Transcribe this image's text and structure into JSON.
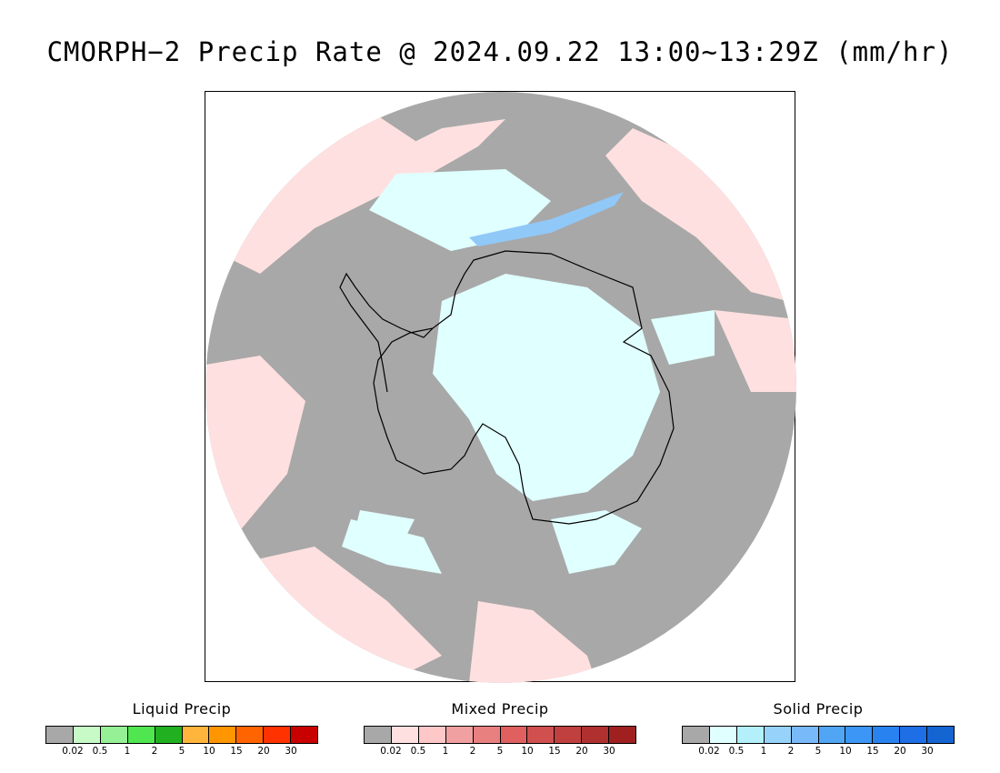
{
  "title": "CMORPH−2 Precip Rate @ 2024.09.22 13:00~13:29Z (mm/hr)",
  "map": {
    "projection": "south-polar-stereographic",
    "colors": {
      "no_precip": "#a8a8a8",
      "mixed_light": "#ffe0e0",
      "solid_light": "#e0ffff",
      "solid_mid": "#90c8f8",
      "coastline": "#000000"
    }
  },
  "legends": [
    {
      "title": "Liquid Precip",
      "colors": [
        "#a8a8a8",
        "#c8fac8",
        "#96f096",
        "#50e650",
        "#20b020",
        "#ffb43c",
        "#ff9600",
        "#ff6400",
        "#ff3200",
        "#c80000"
      ],
      "ticks": [
        "0.02",
        "0.5",
        "1",
        "2",
        "5",
        "10",
        "15",
        "20",
        "30"
      ]
    },
    {
      "title": "Mixed Precip",
      "colors": [
        "#a8a8a8",
        "#ffe0e0",
        "#ffc8c8",
        "#f0a0a0",
        "#e88080",
        "#e06060",
        "#d05050",
        "#c04040",
        "#b03030",
        "#a02020"
      ],
      "ticks": [
        "0.02",
        "0.5",
        "1",
        "2",
        "5",
        "10",
        "15",
        "20",
        "30"
      ]
    },
    {
      "title": "Solid Precip",
      "colors": [
        "#a8a8a8",
        "#e0ffff",
        "#b4f0fa",
        "#96d2fa",
        "#78b9fa",
        "#50a5f5",
        "#3c96f5",
        "#2882f0",
        "#1e6ee6",
        "#1464d2"
      ],
      "ticks": [
        "0.02",
        "0.5",
        "1",
        "2",
        "5",
        "10",
        "15",
        "20",
        "30"
      ]
    }
  ]
}
